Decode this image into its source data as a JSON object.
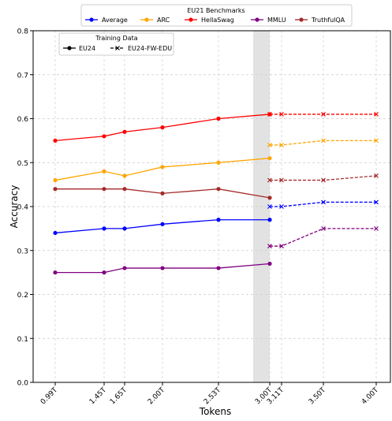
{
  "chart_data": {
    "type": "line",
    "title": "",
    "xlabel": "Tokens",
    "ylabel": "Accuracy",
    "ylim": [
      0.0,
      0.8
    ],
    "yticks": [
      "0.0",
      "0.1",
      "0.2",
      "0.3",
      "0.4",
      "0.5",
      "0.6",
      "0.7",
      "0.8"
    ],
    "xticks": [
      "0.99T",
      "1.45T",
      "1.65T",
      "2.00T",
      "2.53T",
      "3.00T",
      "3.11T",
      "3.50T",
      "4.00T"
    ],
    "grid": true,
    "legend_benchmarks": {
      "title": "EU21 Benchmarks",
      "placement": "top-center, outside plot",
      "entries": [
        "Average",
        "ARC",
        "HellaSwag",
        "MMLU",
        "TruthfulQA"
      ]
    },
    "legend_training": {
      "title": "Training Data",
      "placement": "upper-left",
      "entries": [
        "EU24",
        "EU24-FW-EDU"
      ]
    },
    "highlight_region": {
      "from_tick": "3.00T",
      "note": "shaded band just before 3.00T"
    },
    "series": [
      {
        "name": "Average",
        "color": "#0000ff",
        "eu24": [
          0.34,
          0.35,
          0.35,
          0.36,
          0.37,
          0.37
        ],
        "eu24_fw_edu": [
          0.4,
          0.4,
          0.41,
          0.41
        ]
      },
      {
        "name": "ARC",
        "color": "#ffa500",
        "eu24": [
          0.46,
          0.48,
          0.47,
          0.49,
          0.5,
          0.51
        ],
        "eu24_fw_edu": [
          0.54,
          0.54,
          0.55,
          0.55
        ]
      },
      {
        "name": "HellaSwag",
        "color": "#ff0000",
        "eu24": [
          0.55,
          0.56,
          0.57,
          0.58,
          0.6,
          0.61
        ],
        "eu24_fw_edu": [
          0.61,
          0.61,
          0.61,
          0.61
        ]
      },
      {
        "name": "MMLU",
        "color": "#800080",
        "eu24": [
          0.25,
          0.25,
          0.26,
          0.26,
          0.26,
          0.27
        ],
        "eu24_fw_edu": [
          0.31,
          0.31,
          0.35,
          0.35
        ]
      },
      {
        "name": "TruthfulQA",
        "color": "#a52a2a",
        "eu24": [
          0.44,
          0.44,
          0.44,
          0.43,
          0.44,
          0.42
        ],
        "eu24_fw_edu": [
          0.46,
          0.46,
          0.46,
          0.47
        ]
      }
    ],
    "eu24_x": [
      "0.99T",
      "1.45T",
      "1.65T",
      "2.00T",
      "2.53T",
      "3.00T"
    ],
    "eu24_fw_edu_x": [
      "3.00T",
      "3.11T",
      "3.50T",
      "4.00T"
    ]
  }
}
